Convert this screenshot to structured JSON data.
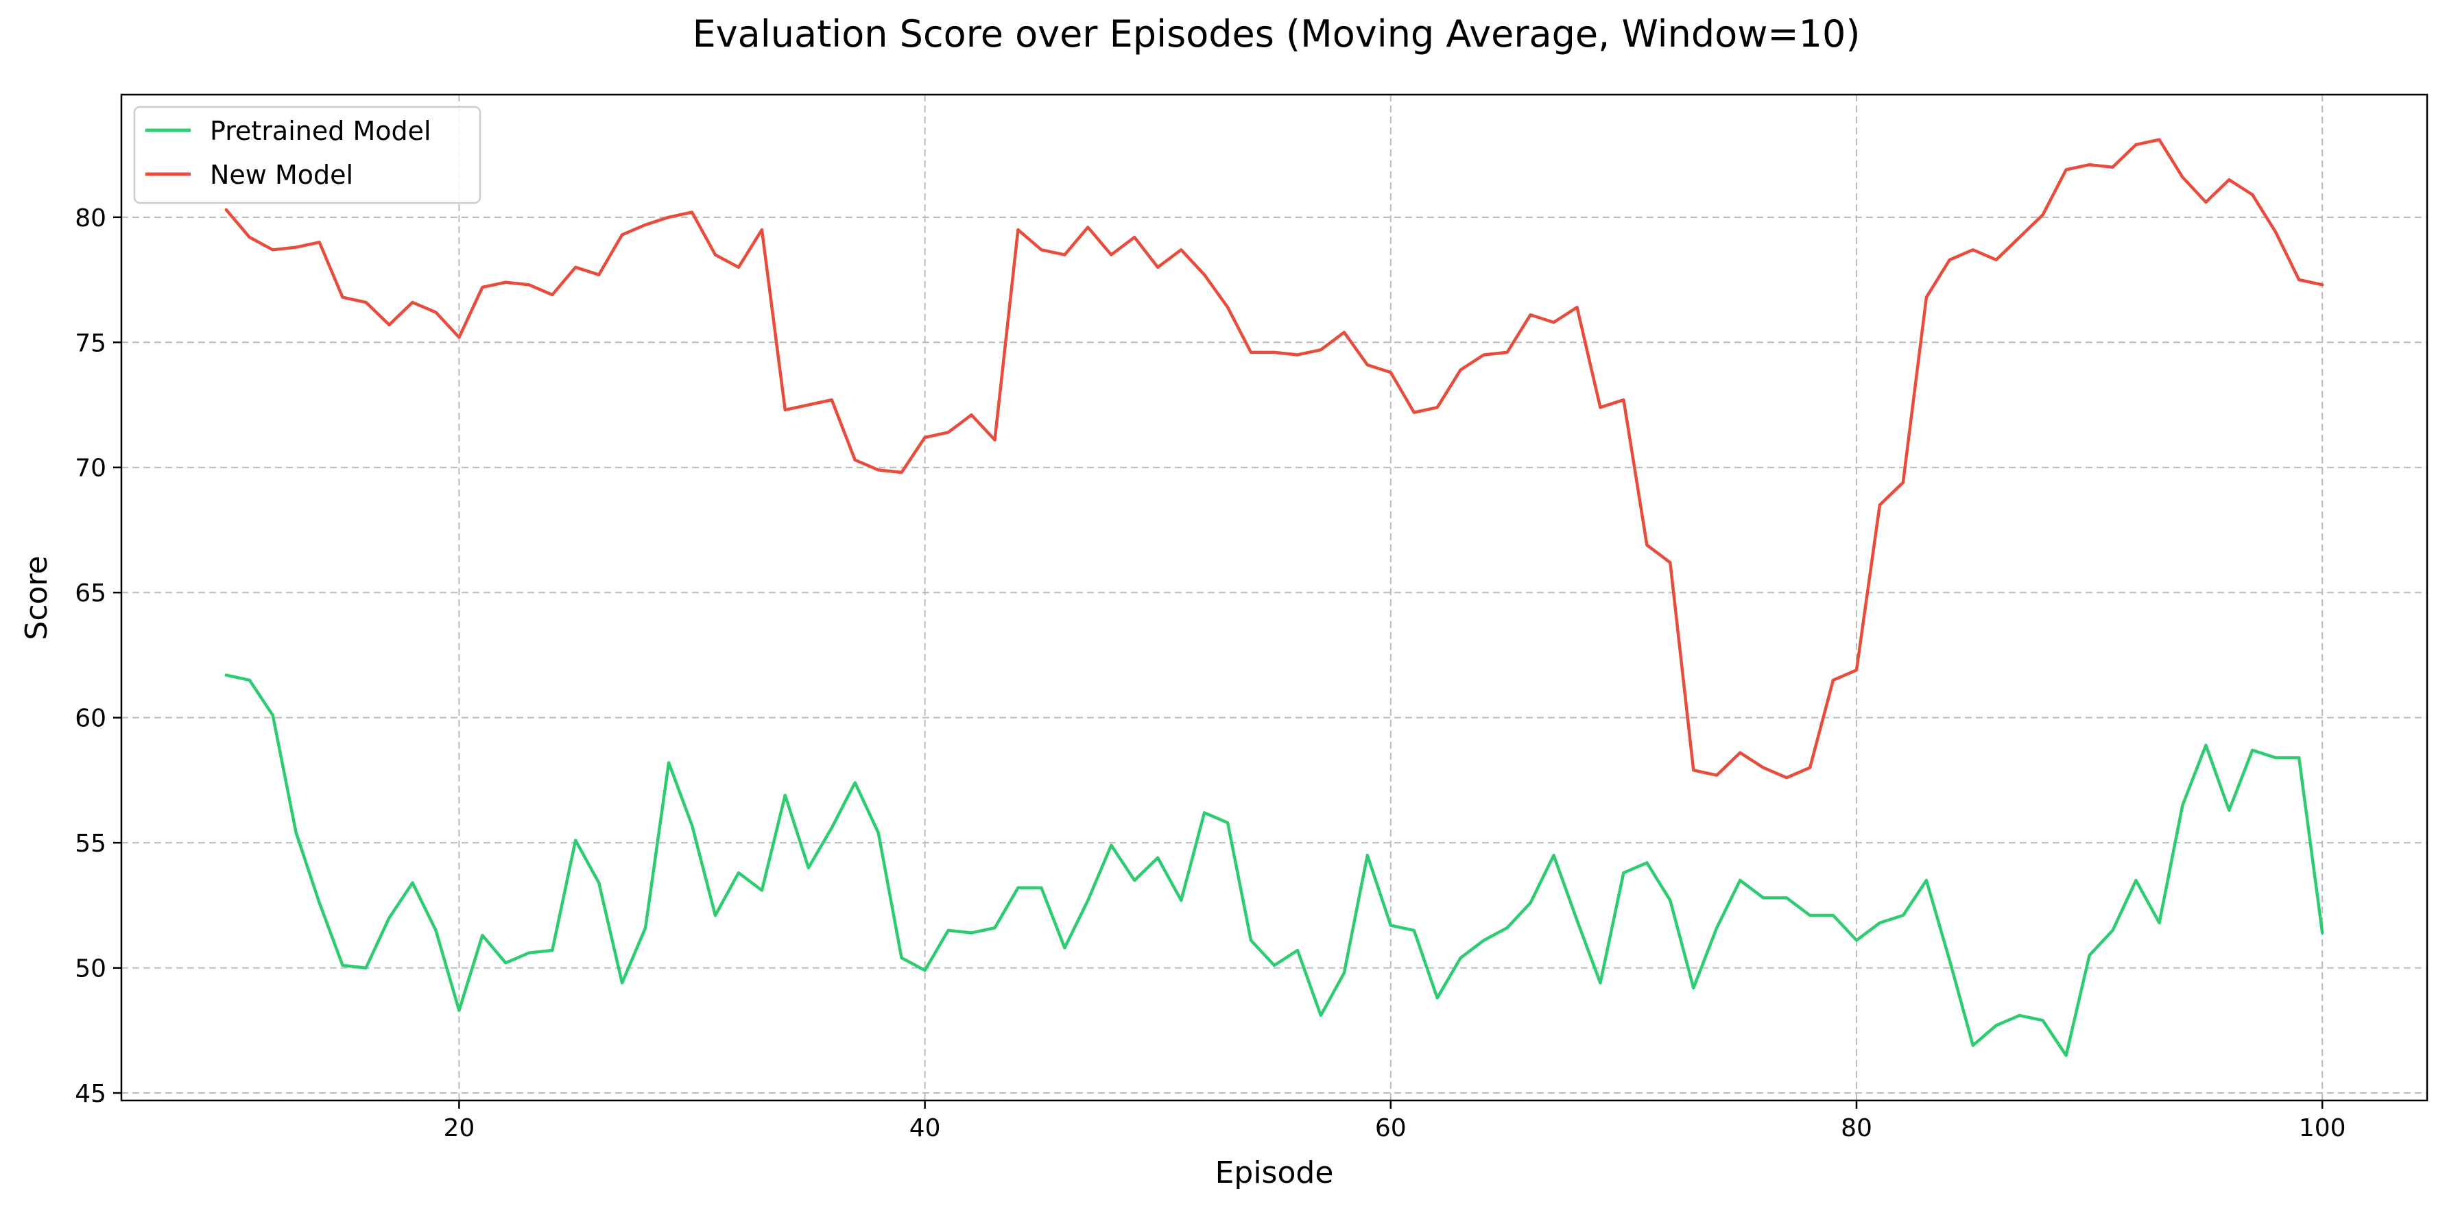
{
  "chart_data": {
    "type": "line",
    "title": "Evaluation Score over Episodes (Moving Average, Window=10)",
    "xlabel": "Episode",
    "ylabel": "Score",
    "xlim": [
      5.5,
      104.5
    ],
    "ylim": [
      44.7,
      84.9
    ],
    "xticks": [
      20,
      40,
      60,
      80,
      100
    ],
    "yticks": [
      45,
      50,
      55,
      60,
      65,
      70,
      75,
      80
    ],
    "grid": true,
    "legend_position": "upper-left",
    "x": [
      10,
      11,
      12,
      13,
      14,
      15,
      16,
      17,
      18,
      19,
      20,
      21,
      22,
      23,
      24,
      25,
      26,
      27,
      28,
      29,
      30,
      31,
      32,
      33,
      34,
      35,
      36,
      37,
      38,
      39,
      40,
      41,
      42,
      43,
      44,
      45,
      46,
      47,
      48,
      49,
      50,
      51,
      52,
      53,
      54,
      55,
      56,
      57,
      58,
      59,
      60,
      61,
      62,
      63,
      64,
      65,
      66,
      67,
      68,
      69,
      70,
      71,
      72,
      73,
      74,
      75,
      76,
      77,
      78,
      79,
      80,
      81,
      82,
      83,
      84,
      85,
      86,
      87,
      88,
      89,
      90,
      91,
      92,
      93,
      94,
      95,
      96,
      97,
      98,
      99,
      100
    ],
    "series": [
      {
        "name": "Pretrained Model",
        "color": "#2ecc71",
        "values": [
          61.7,
          61.5,
          60.1,
          55.4,
          52.6,
          50.1,
          50.0,
          52.0,
          53.4,
          51.5,
          48.3,
          51.3,
          50.2,
          50.6,
          50.7,
          55.1,
          53.4,
          49.4,
          51.6,
          58.2,
          55.7,
          52.1,
          53.8,
          53.1,
          56.9,
          54.0,
          55.6,
          57.4,
          55.4,
          50.4,
          49.9,
          51.5,
          51.4,
          51.6,
          53.2,
          53.2,
          50.8,
          52.7,
          54.9,
          53.5,
          54.4,
          52.7,
          56.2,
          55.8,
          51.1,
          50.1,
          50.7,
          48.1,
          49.8,
          54.5,
          51.7,
          51.5,
          48.8,
          50.4,
          51.1,
          51.6,
          52.6,
          54.5,
          51.9,
          49.4,
          53.8,
          54.2,
          52.7,
          49.2,
          51.6,
          53.5,
          52.8,
          52.8,
          52.1,
          52.1,
          51.1,
          51.8,
          52.1,
          53.5,
          50.3,
          46.9,
          47.7,
          48.1,
          47.9,
          46.5,
          50.5,
          51.5,
          53.5,
          51.8,
          56.5,
          58.9,
          56.3,
          58.7,
          58.4,
          58.4,
          51.4
        ]
      },
      {
        "name": "New Model",
        "color": "#e74c3c",
        "values": [
          80.3,
          79.2,
          78.7,
          78.8,
          79.0,
          76.8,
          76.6,
          75.7,
          76.6,
          76.2,
          75.2,
          77.2,
          77.4,
          77.3,
          76.9,
          78.0,
          77.7,
          79.3,
          79.7,
          80.0,
          80.2,
          78.5,
          78.0,
          79.5,
          72.3,
          72.5,
          72.7,
          70.3,
          69.9,
          69.8,
          71.2,
          71.4,
          72.1,
          71.1,
          79.5,
          78.7,
          78.5,
          79.6,
          78.5,
          79.2,
          78.0,
          78.7,
          77.7,
          76.4,
          74.6,
          74.6,
          74.5,
          74.7,
          75.4,
          74.1,
          73.8,
          72.2,
          72.4,
          73.9,
          74.5,
          74.6,
          76.1,
          75.8,
          76.4,
          72.4,
          72.7,
          66.9,
          66.2,
          57.9,
          57.7,
          58.6,
          58.0,
          57.6,
          58.0,
          61.5,
          61.9,
          68.5,
          69.4,
          76.8,
          78.3,
          78.7,
          78.3,
          79.2,
          80.1,
          81.9,
          82.1,
          82.0,
          82.9,
          83.1,
          81.6,
          80.6,
          81.5,
          80.9,
          79.4,
          77.5,
          77.3
        ]
      }
    ]
  }
}
